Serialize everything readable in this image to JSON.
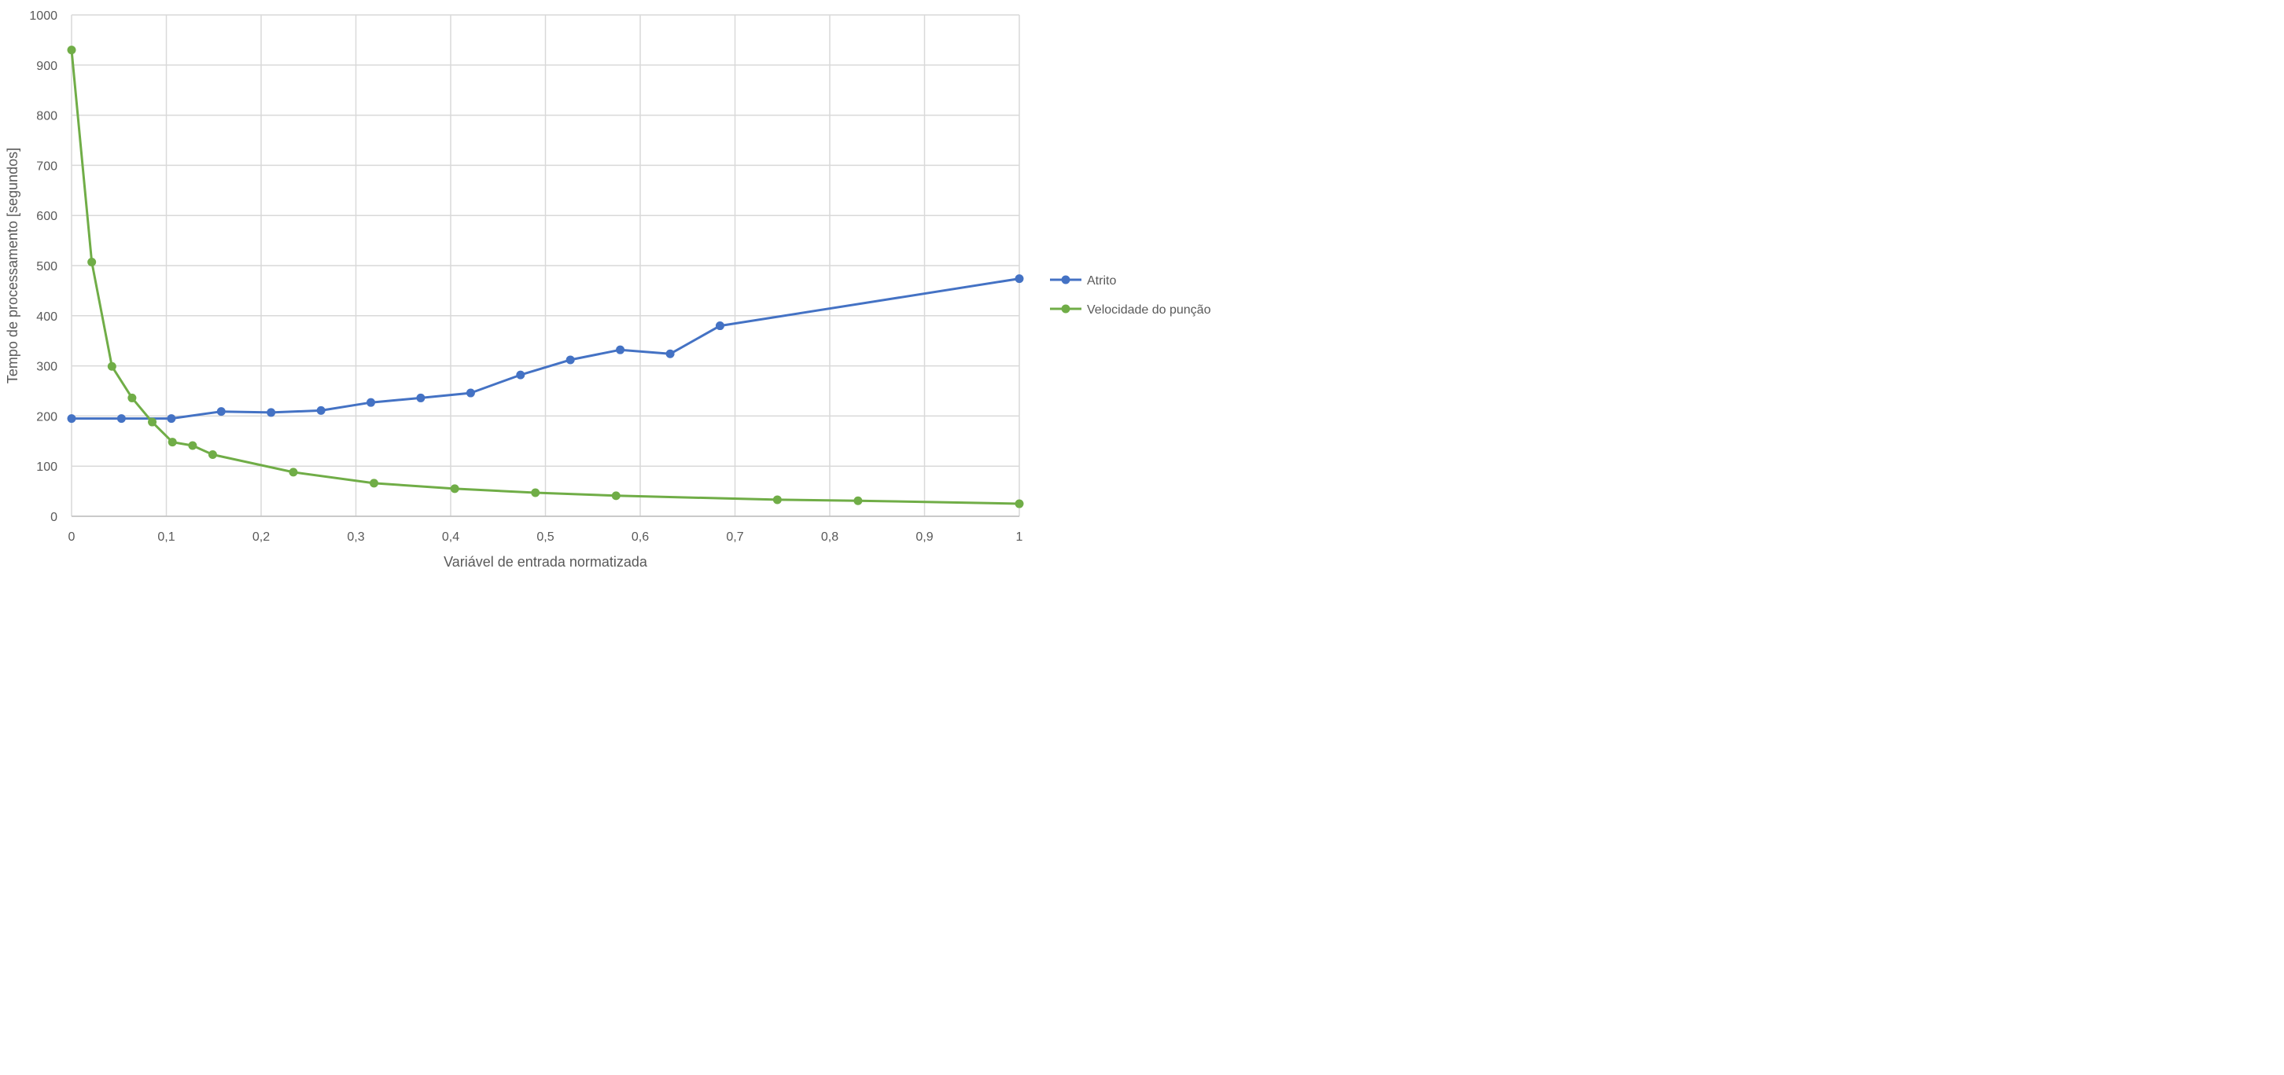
{
  "chart_data": {
    "type": "line",
    "title": "",
    "xlabel": "Variável de entrada normatizada",
    "ylabel": "Tempo de processamento [segundos]",
    "xlim": [
      0,
      1
    ],
    "ylim": [
      0,
      1000
    ],
    "x_ticks": [
      0,
      0.1,
      0.2,
      0.3,
      0.4,
      0.5,
      0.6,
      0.7,
      0.8,
      0.9,
      1
    ],
    "x_tick_labels": [
      "0",
      "0,1",
      "0,2",
      "0,3",
      "0,4",
      "0,5",
      "0,6",
      "0,7",
      "0,8",
      "0,9",
      "1"
    ],
    "y_ticks": [
      0,
      100,
      200,
      300,
      400,
      500,
      600,
      700,
      800,
      900,
      1000
    ],
    "y_tick_labels": [
      "0",
      "100",
      "200",
      "300",
      "400",
      "500",
      "600",
      "700",
      "800",
      "900",
      "1000"
    ],
    "grid": true,
    "legend_position": "right",
    "series": [
      {
        "name": "Atrito",
        "color": "#4472C4",
        "x": [
          0,
          0.0526,
          0.1053,
          0.1579,
          0.2105,
          0.2632,
          0.3158,
          0.3684,
          0.4211,
          0.4737,
          0.5263,
          0.5789,
          0.6316,
          0.6842,
          1
        ],
        "y": [
          195,
          195,
          195,
          209,
          207,
          211,
          227,
          236,
          246,
          282,
          312,
          332,
          324,
          380,
          474
        ]
      },
      {
        "name": "Velocidade do punção",
        "color": "#70AD47",
        "x": [
          0,
          0.0213,
          0.0426,
          0.0638,
          0.0851,
          0.1064,
          0.1277,
          0.1489,
          0.234,
          0.3191,
          0.4043,
          0.4894,
          0.5745,
          0.7447,
          0.8298,
          1
        ],
        "y": [
          930,
          507,
          299,
          236,
          188,
          148,
          141,
          123,
          88,
          66,
          55,
          47,
          41,
          33,
          31,
          25
        ]
      }
    ]
  }
}
